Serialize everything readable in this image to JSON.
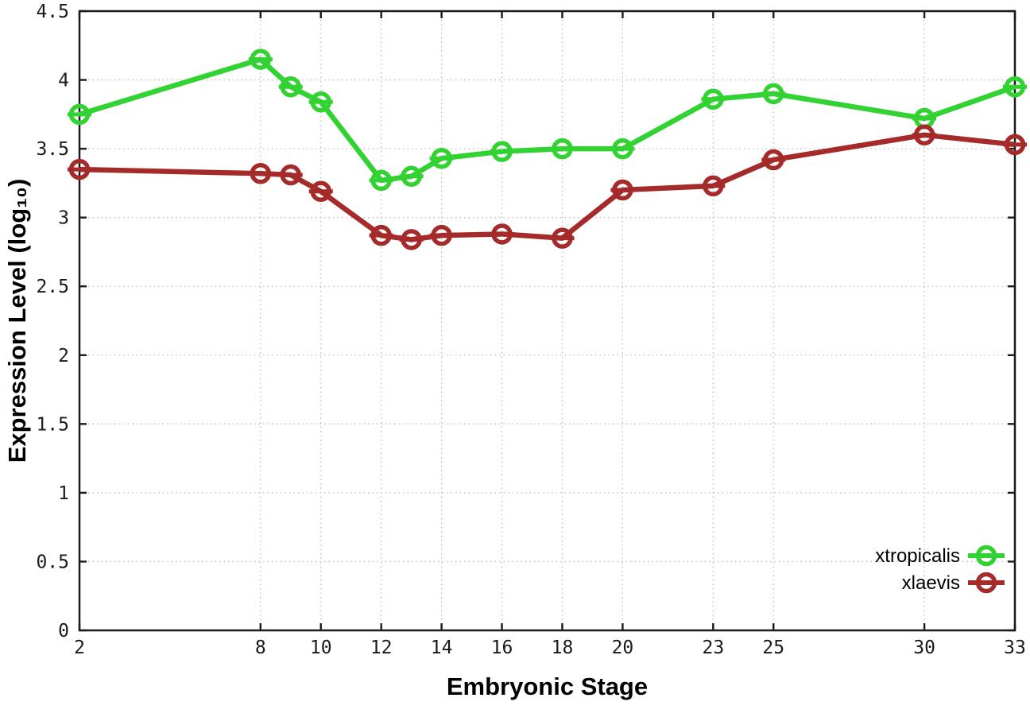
{
  "chart_data": {
    "type": "line",
    "title": "",
    "xlabel": "Embryonic Stage",
    "ylabel": "Expression Level (log₁₀)",
    "x": [
      2,
      8,
      9,
      10,
      12,
      13,
      14,
      16,
      18,
      20,
      23,
      25,
      30,
      33
    ],
    "series": [
      {
        "name": "xtropicalis",
        "color": "#32d232",
        "values": [
          3.75,
          4.15,
          3.95,
          3.84,
          3.27,
          3.3,
          3.43,
          3.48,
          3.5,
          3.5,
          3.86,
          3.9,
          3.72,
          3.95
        ]
      },
      {
        "name": "xlaevis",
        "color": "#a52a2a",
        "values": [
          3.35,
          3.32,
          3.31,
          3.19,
          2.87,
          2.84,
          2.87,
          2.88,
          2.85,
          3.2,
          3.23,
          3.42,
          3.6,
          3.53
        ]
      }
    ],
    "x_ticks": [
      2,
      8,
      10,
      12,
      14,
      16,
      18,
      20,
      23,
      25,
      30,
      33
    ],
    "y_ticks": [
      0,
      0.5,
      1,
      1.5,
      2,
      2.5,
      3,
      3.5,
      4,
      4.5
    ],
    "xlim": [
      2,
      33
    ],
    "ylim": [
      0,
      4.5
    ],
    "grid": true,
    "grid_style": "dotted",
    "legend_position": "inside-bottom-right",
    "marker": "open-circle-with-errorbar-dash",
    "colors": {
      "border": "#1a1a1a",
      "grid": "#bdbdbd",
      "background": "#ffffff"
    }
  }
}
